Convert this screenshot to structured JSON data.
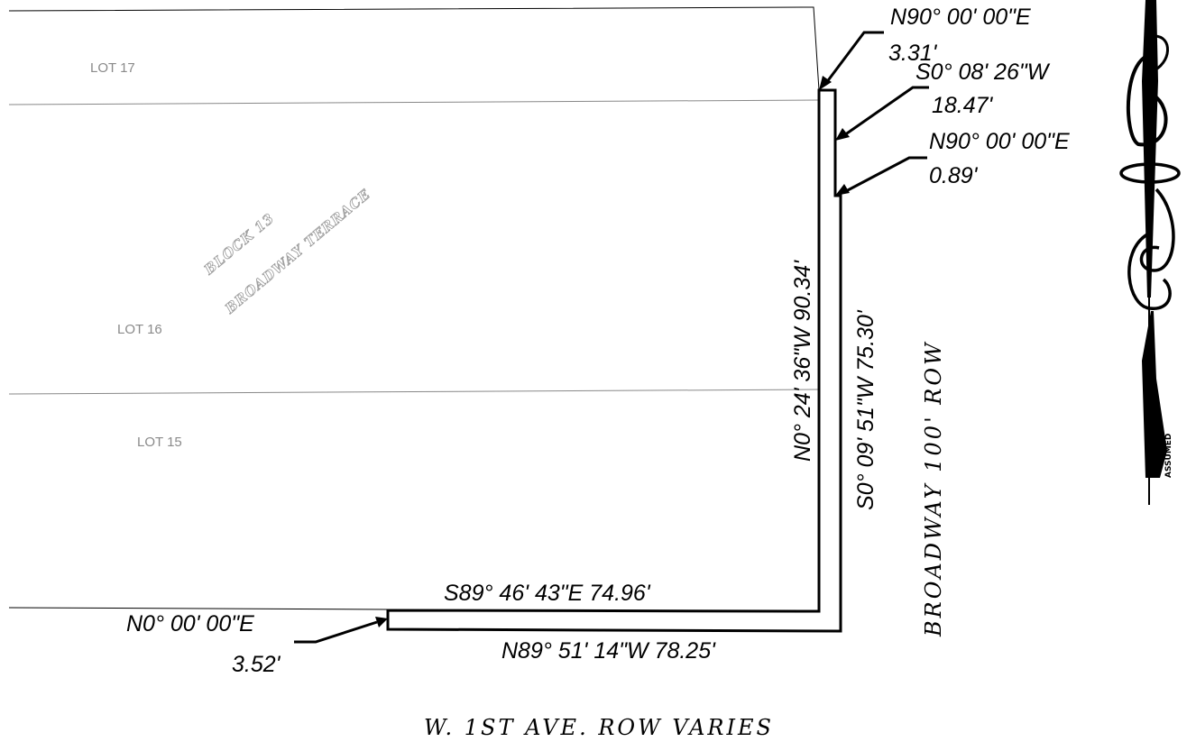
{
  "lots": [
    {
      "id": "lot-17",
      "label": "LOT 17"
    },
    {
      "id": "lot-16",
      "label": "LOT 16"
    },
    {
      "id": "lot-15",
      "label": "LOT 15"
    }
  ],
  "block": {
    "line1": "BLOCK 13",
    "line2": "BROADWAY TERRACE"
  },
  "bearings": {
    "top_n90_bearing": "N90° 00' 00\"E",
    "top_n90_dist": "3.31'",
    "s0_0826_bearing": "S0° 08' 26\"W",
    "s0_0826_dist": "18.47'",
    "n90_089_bearing": "N90° 00' 00\"E",
    "n90_089_dist": "0.89'",
    "west_line": "N0° 24' 36\"W  90.34'",
    "east_line": "S0° 09' 51\"W  75.30'",
    "north_bottom": "S89° 46' 43\"E  74.96'",
    "south_bottom": "N89° 51' 14\"W  78.25'",
    "n0_bearing": "N0° 00' 00\"E",
    "n0_dist": "3.52'"
  },
  "streets": {
    "broadway": "BROADWAY 100'  ROW",
    "w1st": "W. 1ST AVE. ROW VARIES"
  },
  "north_arrow": {
    "label": "ASSUMED"
  }
}
